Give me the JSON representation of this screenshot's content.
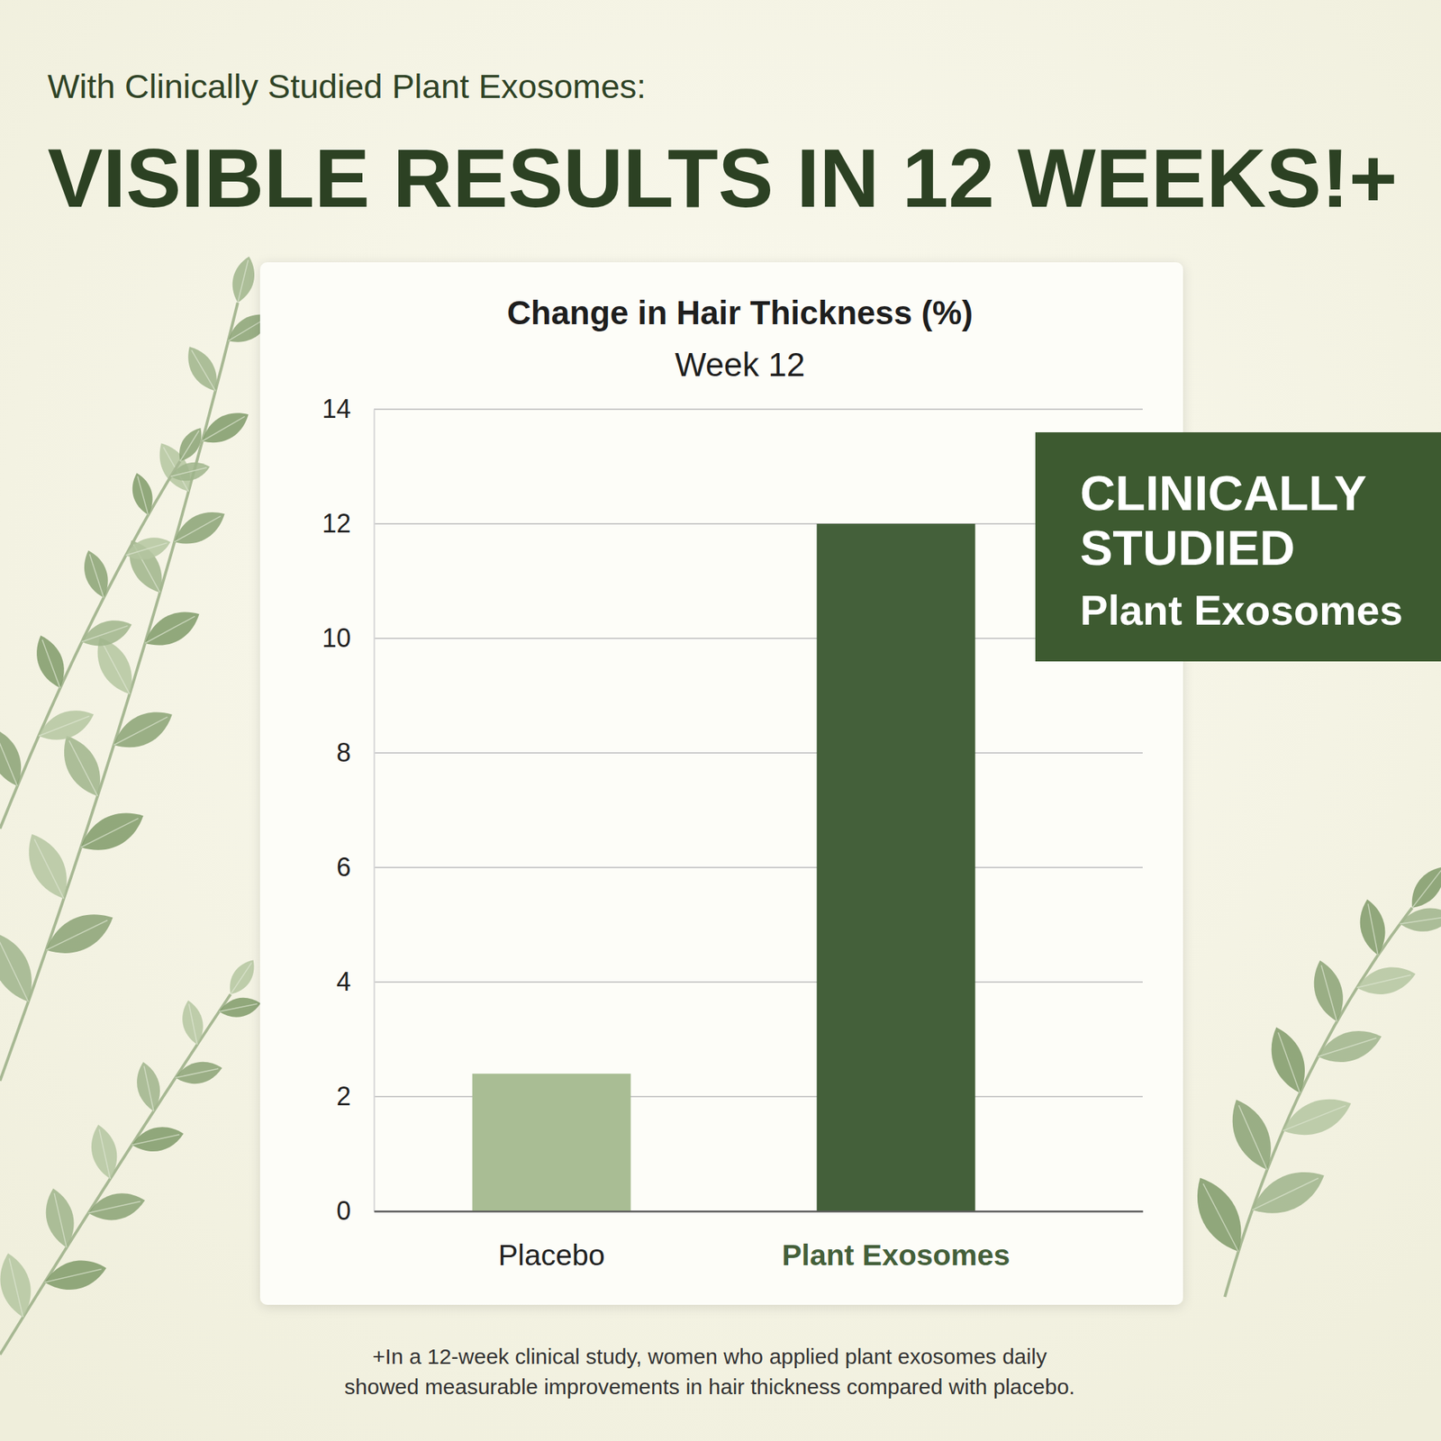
{
  "header": {
    "kicker": "With Clinically Studied Plant Exosomes:",
    "headline": "VISIBLE RESULTS IN 12 WEEKS!+"
  },
  "chart_data": {
    "type": "bar",
    "title": "Change in Hair Thickness (%)",
    "subtitle": "Week 12",
    "categories": [
      "Placebo",
      "Plant Exosomes"
    ],
    "values": [
      2.4,
      12.0
    ],
    "colors": [
      "#a9bd94",
      "#44603a"
    ],
    "ylim": [
      0,
      14
    ],
    "yticks": [
      0,
      2,
      4,
      6,
      8,
      10,
      12,
      14
    ],
    "grid": true,
    "annotations": [
      "CLINICALLY STUDIED",
      "Plant Exosomes"
    ]
  },
  "footnote": [
    "+In a 12-week clinical study, women who applied plant exosomes daily",
    "showed measurable improvements in hair thickness compared with placebo."
  ]
}
